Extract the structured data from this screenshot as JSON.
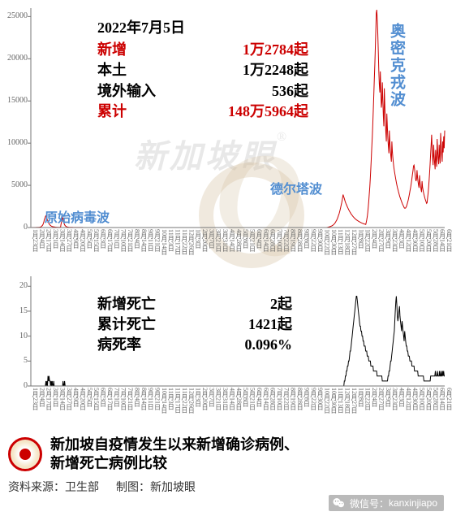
{
  "colors": {
    "red": "#cc0000",
    "black": "#000000",
    "blue": "#528ed1",
    "axis": "#757575",
    "background": "#ffffff",
    "watermark_gray": "#b0b0b0",
    "watermark_beige": "#d4c0a0"
  },
  "top_chart": {
    "type": "line",
    "ylim": [
      0,
      26000
    ],
    "yticks": [
      0,
      5000,
      10000,
      15000,
      20000,
      25000
    ],
    "ytick_labels": [
      "0",
      "5000",
      "10000",
      "15000",
      "20000",
      "25000"
    ],
    "line_color": "#cc0000",
    "line_width": 1,
    "n_points": 890,
    "series_description": "daily new cases",
    "series": [
      0,
      0,
      0,
      5,
      3,
      8,
      4,
      6,
      2,
      5,
      10,
      8,
      15,
      12,
      18,
      20,
      25,
      30,
      45,
      60,
      80,
      120,
      180,
      250,
      350,
      500,
      700,
      950,
      1100,
      1300,
      1400,
      1250,
      1100,
      900,
      750,
      600,
      480,
      380,
      300,
      250,
      200,
      160,
      130,
      110,
      95,
      85,
      75,
      65,
      55,
      48,
      42,
      38,
      35,
      32,
      30,
      28,
      26,
      25,
      24,
      23,
      400,
      600,
      900,
      1200,
      1000,
      750,
      500,
      350,
      250,
      180,
      130,
      95,
      70,
      55,
      45,
      38,
      32,
      28,
      25,
      22,
      20,
      18,
      16,
      15,
      14,
      13,
      12,
      11,
      10,
      10,
      9,
      9,
      8,
      8,
      7,
      7,
      7,
      6,
      6,
      6,
      5,
      5,
      5,
      5,
      4,
      4,
      4,
      4,
      4,
      3,
      3,
      3,
      3,
      3,
      3,
      2,
      2,
      2,
      2,
      2,
      2,
      2,
      2,
      2,
      1,
      1,
      1,
      1,
      1,
      1,
      1,
      1,
      1,
      1,
      1,
      1,
      0,
      0,
      0,
      0,
      0,
      0,
      0,
      0,
      0,
      0,
      0,
      0,
      0,
      0,
      0,
      0,
      0,
      0,
      0,
      0,
      0,
      0,
      0,
      0,
      0,
      0,
      0,
      0,
      0,
      0,
      0,
      0,
      0,
      0,
      0,
      0,
      0,
      0,
      0,
      0,
      0,
      0,
      0,
      0,
      0,
      0,
      0,
      0,
      0,
      0,
      0,
      0,
      0,
      0,
      0,
      0,
      0,
      0,
      0,
      0,
      0,
      0,
      0,
      0,
      0,
      0,
      0,
      0,
      0,
      0,
      0,
      0,
      0,
      0,
      0,
      0,
      0,
      0,
      0,
      0,
      0,
      0,
      0,
      0,
      0,
      0,
      0,
      0,
      0,
      0,
      0,
      0,
      0,
      0,
      0,
      0,
      0,
      0,
      0,
      0,
      0,
      0,
      0,
      0,
      0,
      0,
      0,
      0,
      0,
      0,
      0,
      0,
      0,
      0,
      0,
      0,
      0,
      0,
      0,
      0,
      0,
      0,
      0,
      0,
      0,
      0,
      0,
      0,
      0,
      0,
      0,
      0,
      0,
      0,
      0,
      0,
      0,
      0,
      0,
      0,
      0,
      0,
      0,
      0,
      0,
      0,
      0,
      0,
      0,
      0,
      0,
      0,
      0,
      0,
      0,
      0,
      0,
      0,
      0,
      0,
      0,
      0,
      0,
      0,
      0,
      0,
      0,
      0,
      0,
      0,
      0,
      0,
      0,
      0,
      0,
      0,
      0,
      0,
      0,
      0,
      0,
      0,
      0,
      0,
      0,
      0,
      0,
      0,
      0,
      0,
      0,
      0,
      0,
      0,
      0,
      0,
      0,
      0,
      0,
      0,
      0,
      0,
      0,
      0,
      0,
      0,
      0,
      0,
      0,
      0,
      0,
      0,
      0,
      0,
      0,
      0,
      0,
      0,
      0,
      0,
      0,
      0,
      0,
      0,
      0,
      0,
      0,
      0,
      0,
      0,
      0,
      0,
      0,
      0,
      0,
      0,
      0,
      0,
      0,
      0,
      0,
      0,
      0,
      0,
      0,
      0,
      0,
      0,
      0,
      0,
      0,
      0,
      0,
      0,
      0,
      0,
      0,
      0,
      0,
      0,
      0,
      0,
      0,
      0,
      0,
      0,
      0,
      0,
      0,
      0,
      0,
      0,
      0,
      0,
      0,
      0,
      0,
      0,
      0,
      0,
      0,
      0,
      0,
      0,
      0,
      0,
      0,
      0,
      0,
      0,
      0,
      0,
      0,
      0,
      0,
      0,
      0,
      0,
      0,
      0,
      0,
      0,
      0,
      0,
      0,
      0,
      0,
      0,
      0,
      0,
      0,
      0,
      0,
      0,
      0,
      0,
      0,
      0,
      0,
      0,
      0,
      0,
      0,
      0,
      0,
      0,
      0,
      0,
      0,
      0,
      0,
      0,
      0,
      0,
      0,
      0,
      0,
      0,
      0,
      0,
      0,
      0,
      0,
      0,
      0,
      0,
      0,
      0,
      0,
      0,
      0,
      0,
      0,
      0,
      0,
      0,
      0,
      0,
      0,
      0,
      0,
      0,
      0,
      0,
      0,
      0,
      0,
      0,
      0,
      0,
      0,
      0,
      0,
      0,
      0,
      0,
      0,
      0,
      0,
      0,
      0,
      0,
      0,
      0,
      0,
      0,
      0,
      0,
      0,
      0,
      0,
      0,
      0,
      0,
      0,
      0,
      0,
      0,
      0,
      0,
      0,
      0,
      0,
      0,
      0,
      0,
      0,
      0,
      0,
      0,
      0,
      0,
      0,
      0,
      0,
      0,
      0,
      0,
      0,
      0,
      0,
      0,
      0,
      0,
      0,
      0,
      0,
      0,
      0,
      0,
      0,
      0,
      0,
      0,
      0,
      0,
      0,
      0,
      0,
      0,
      0,
      0,
      0,
      0,
      0,
      0,
      0,
      0,
      0,
      0,
      0,
      0,
      0,
      20,
      30,
      40,
      55,
      70,
      90,
      110,
      130,
      150,
      180,
      210,
      250,
      290,
      340,
      400,
      470,
      550,
      640,
      740,
      850,
      980,
      1120,
      1280,
      1450,
      1640,
      1850,
      2080,
      2330,
      2600,
      2900,
      3200,
      3550,
      3900,
      3700,
      3500,
      3300,
      3100,
      2950,
      2800,
      2650,
      2500,
      2380,
      2250,
      2130,
      2000,
      1900,
      1800,
      1700,
      1600,
      1520,
      1440,
      1360,
      1290,
      1220,
      1160,
      1100,
      1040,
      990,
      940,
      890,
      850,
      810,
      770,
      730,
      695,
      660,
      630,
      600,
      570,
      540,
      515,
      490,
      465,
      445,
      425,
      405,
      385,
      370,
      600,
      900,
      1300,
      1800,
      2400,
      3100,
      3900,
      4800,
      5800,
      6900,
      8100,
      9400,
      10800,
      12300,
      13900,
      15600,
      17400,
      19300,
      21300,
      23300,
      25400,
      25800,
      24500,
      22800,
      20800,
      18600,
      17000,
      16000,
      18500,
      16200,
      14200,
      14800,
      17200,
      15000,
      13200,
      12000,
      16500,
      14200,
      12500,
      11200,
      10200,
      13500,
      11800,
      10500,
      9600,
      8800,
      11500,
      10000,
      9100,
      8400,
      7800,
      10200,
      8900,
      8200,
      7600,
      7100,
      6700,
      6300,
      5950,
      5620,
      5310,
      5020,
      4750,
      4500,
      4260,
      4040,
      3830,
      3630,
      3450,
      3275,
      3110,
      2955,
      2810,
      2670,
      2540,
      2415,
      2300,
      2300,
      2300,
      2400,
      2500,
      2700,
      2900,
      3150,
      3400,
      3700,
      4000,
      4330,
      4680,
      5050,
      5450,
      5870,
      6320,
      6800,
      7300,
      7400,
      7000,
      6400,
      5800,
      5500,
      5800,
      6800,
      6000,
      5400,
      5000,
      4700,
      6200,
      5400,
      4900,
      4500,
      4200,
      5500,
      4800,
      4400,
      4100,
      3850,
      3620,
      3410,
      3210,
      3030,
      2860,
      2940,
      3500,
      4100,
      4800,
      5600,
      6500,
      7500,
      8600,
      9800,
      11000,
      9500,
      8300,
      7400,
      9800,
      8500,
      7600,
      6900,
      9200,
      8000,
      7200,
      10500,
      9100,
      8200,
      7500,
      9800,
      8500,
      7600,
      11200,
      9700,
      8600,
      7800,
      10200,
      8900,
      10800,
      9400,
      11500
    ],
    "wave_labels": {
      "original": "原始病毒波",
      "delta": "德尔塔波",
      "omicron": "奥密克戎波"
    }
  },
  "bottom_chart": {
    "type": "line",
    "ylim": [
      0,
      22
    ],
    "yticks": [
      0,
      5,
      10,
      15,
      20
    ],
    "ytick_labels": [
      "0",
      "5",
      "10",
      "15",
      "20"
    ],
    "line_color": "#000000",
    "line_width": 1,
    "series": [
      0,
      0,
      0,
      0,
      0,
      0,
      0,
      0,
      0,
      0,
      0,
      0,
      0,
      0,
      0,
      0,
      0,
      0,
      0,
      0,
      0,
      0,
      0,
      0,
      0,
      0,
      0,
      0,
      0,
      1,
      0,
      1,
      0,
      2,
      1,
      2,
      1,
      1,
      0,
      1,
      0,
      1,
      0,
      0,
      1,
      0,
      0,
      0,
      0,
      0,
      0,
      0,
      0,
      0,
      0,
      0,
      0,
      0,
      0,
      0,
      0,
      0,
      1,
      0,
      0,
      1,
      0,
      0,
      0,
      0,
      0,
      0,
      0,
      0,
      0,
      0,
      0,
      0,
      0,
      0,
      0,
      0,
      0,
      0,
      0,
      0,
      0,
      0,
      0,
      0,
      0,
      0,
      0,
      0,
      0,
      0,
      0,
      0,
      0,
      0,
      0,
      0,
      0,
      0,
      0,
      0,
      0,
      0,
      0,
      0,
      0,
      0,
      0,
      0,
      0,
      0,
      0,
      0,
      0,
      0,
      0,
      0,
      0,
      0,
      0,
      0,
      0,
      0,
      0,
      0,
      0,
      0,
      0,
      0,
      0,
      0,
      0,
      0,
      0,
      0,
      0,
      0,
      0,
      0,
      0,
      0,
      0,
      0,
      0,
      0,
      0,
      0,
      0,
      0,
      0,
      0,
      0,
      0,
      0,
      0,
      0,
      0,
      0,
      0,
      0,
      0,
      0,
      0,
      0,
      0,
      0,
      0,
      0,
      0,
      0,
      0,
      0,
      0,
      0,
      0,
      0,
      0,
      0,
      0,
      0,
      0,
      0,
      0,
      0,
      0,
      0,
      0,
      0,
      0,
      0,
      0,
      0,
      0,
      0,
      0,
      0,
      0,
      0,
      0,
      0,
      0,
      0,
      0,
      0,
      0,
      0,
      0,
      0,
      0,
      0,
      0,
      0,
      0,
      0,
      0,
      0,
      0,
      0,
      0,
      0,
      0,
      0,
      0,
      0,
      0,
      0,
      0,
      0,
      0,
      0,
      0,
      0,
      0,
      0,
      0,
      0,
      0,
      0,
      0,
      0,
      0,
      0,
      0,
      0,
      0,
      0,
      0,
      0,
      0,
      0,
      0,
      0,
      0,
      0,
      0,
      0,
      0,
      0,
      0,
      0,
      0,
      0,
      0,
      0,
      0,
      0,
      0,
      0,
      0,
      0,
      0,
      0,
      0,
      0,
      0,
      0,
      0,
      0,
      0,
      0,
      0,
      0,
      0,
      0,
      0,
      0,
      0,
      0,
      0,
      0,
      0,
      0,
      0,
      0,
      0,
      0,
      0,
      0,
      0,
      0,
      0,
      0,
      0,
      0,
      0,
      0,
      0,
      0,
      0,
      0,
      0,
      0,
      0,
      0,
      0,
      0,
      0,
      0,
      0,
      0,
      0,
      0,
      0,
      0,
      0,
      0,
      0,
      0,
      0,
      0,
      0,
      0,
      0,
      0,
      0,
      0,
      0,
      0,
      0,
      0,
      0,
      0,
      0,
      0,
      0,
      0,
      0,
      0,
      0,
      0,
      0,
      0,
      0,
      0,
      0,
      0,
      0,
      0,
      0,
      0,
      0,
      0,
      0,
      0,
      0,
      0,
      0,
      0,
      0,
      0,
      0,
      0,
      0,
      0,
      0,
      0,
      0,
      0,
      0,
      0,
      0,
      0,
      0,
      0,
      0,
      0,
      0,
      0,
      0,
      0,
      0,
      0,
      0,
      0,
      0,
      0,
      0,
      0,
      0,
      0,
      0,
      0,
      0,
      0,
      0,
      0,
      0,
      0,
      0,
      0,
      0,
      0,
      0,
      0,
      0,
      0,
      0,
      0,
      0,
      0,
      0,
      0,
      0,
      0,
      0,
      0,
      0,
      0,
      0,
      0,
      0,
      0,
      0,
      0,
      0,
      0,
      0,
      0,
      0,
      0,
      0,
      0,
      0,
      0,
      0,
      0,
      0,
      0,
      0,
      0,
      0,
      0,
      0,
      0,
      0,
      0,
      0,
      0,
      0,
      0,
      0,
      0,
      0,
      0,
      0,
      0,
      0,
      0,
      0,
      0,
      0,
      0,
      0,
      0,
      0,
      0,
      0,
      0,
      0,
      0,
      0,
      0,
      0,
      0,
      0,
      0,
      0,
      0,
      0,
      0,
      0,
      0,
      0,
      0,
      0,
      0,
      0,
      0,
      0,
      0,
      0,
      0,
      0,
      0,
      0,
      0,
      0,
      0,
      0,
      0,
      0,
      0,
      0,
      0,
      0,
      0,
      0,
      0,
      0,
      0,
      0,
      0,
      0,
      0,
      0,
      0,
      0,
      0,
      0,
      0,
      0,
      0,
      0,
      0,
      0,
      0,
      0,
      0,
      0,
      0,
      0,
      0,
      0,
      0,
      0,
      0,
      0,
      0,
      0,
      0,
      0,
      0,
      0,
      0,
      0,
      0,
      0,
      0,
      0,
      0,
      0,
      0,
      0,
      0,
      0,
      0,
      0,
      0,
      0,
      0,
      0,
      0,
      0,
      0,
      0,
      0,
      0,
      0,
      0,
      0,
      0,
      0,
      0,
      0,
      0,
      0,
      0,
      0,
      0,
      0,
      0,
      0,
      0,
      0,
      0,
      0,
      0,
      0,
      1,
      1,
      2,
      2,
      3,
      3,
      4,
      4,
      5,
      5,
      6,
      7,
      7,
      8,
      9,
      10,
      11,
      12,
      13,
      14,
      15,
      16,
      17,
      18,
      18,
      17,
      16,
      15,
      14,
      13,
      12,
      12,
      11,
      11,
      10,
      10,
      9,
      9,
      8,
      8,
      8,
      7,
      7,
      7,
      6,
      6,
      6,
      5,
      5,
      5,
      5,
      4,
      4,
      4,
      4,
      4,
      3,
      3,
      3,
      3,
      3,
      3,
      3,
      2,
      2,
      2,
      2,
      2,
      2,
      2,
      2,
      2,
      2,
      1,
      1,
      1,
      1,
      1,
      1,
      1,
      1,
      1,
      1,
      1,
      2,
      2,
      3,
      3,
      4,
      5,
      5,
      6,
      7,
      8,
      9,
      10,
      11,
      13,
      15,
      17,
      18,
      16,
      14,
      13,
      14,
      15,
      16,
      14,
      13,
      12,
      11,
      13,
      12,
      11,
      10,
      9,
      11,
      10,
      9,
      8,
      8,
      7,
      7,
      6,
      6,
      6,
      5,
      5,
      5,
      5,
      4,
      4,
      4,
      4,
      4,
      3,
      3,
      3,
      3,
      3,
      3,
      3,
      2,
      2,
      2,
      2,
      2,
      2,
      2,
      2,
      2,
      2,
      2,
      1,
      1,
      1,
      1,
      1,
      1,
      1,
      1,
      1,
      1,
      1,
      1,
      1,
      2,
      2,
      2,
      2,
      2,
      2,
      2,
      2,
      2,
      3,
      2,
      2,
      2,
      3,
      2,
      2,
      2,
      3,
      2,
      2,
      3,
      2,
      2,
      3,
      2,
      3,
      2,
      2
    ]
  },
  "xaxis": {
    "ticks": [
      "1月23日",
      "2月4日",
      "2月17日",
      "3月1日",
      "3月14日",
      "3月27日",
      "4月9日",
      "4月20日",
      "5月5日",
      "5月15日",
      "6月3日",
      "6月17日",
      "7月1日",
      "7月10日",
      "7月21日",
      "8月4日",
      "8月14日",
      "9月11日",
      "9月21日",
      "10月14日",
      "11月3日",
      "11月17日",
      "11月22日",
      "12月26日",
      "1月3日",
      "2月20日",
      "3月7日",
      "3月21日",
      "3月31日",
      "4月14日",
      "4月28日",
      "5月8日",
      "5月21日",
      "6月4日",
      "6月14日",
      "6月28日",
      "7月10日",
      "7月22日",
      "8月19日",
      "8月28日",
      "9月8日",
      "9月22日",
      "9月30日",
      "10月22日",
      "10月30日",
      "11月13日",
      "12月18日",
      "12月27日",
      "1月8日",
      "1月22日",
      "2月4日",
      "2月27日",
      "3月9日",
      "3月23日",
      "4月3日",
      "4月12日",
      "4月30日",
      "5月10日",
      "5月20日",
      "5月28日",
      "6月14日",
      "6月21日"
    ]
  },
  "stats_top": {
    "date": "2022年7月5日",
    "rows": [
      {
        "label": "新增",
        "value": "1万2784起",
        "color": "#cc0000"
      },
      {
        "label": "本土",
        "value": "1万2248起",
        "color": "#000000"
      },
      {
        "label": "境外输入",
        "value": "536起",
        "color": "#000000"
      },
      {
        "label": "累计",
        "value": "148万5964起",
        "color": "#cc0000"
      }
    ]
  },
  "stats_bottom": {
    "rows": [
      {
        "label": "新增死亡",
        "value": "2起"
      },
      {
        "label": "累计死亡",
        "value": "1421起"
      },
      {
        "label": "病死率",
        "value": "0.096%"
      }
    ]
  },
  "watermark": {
    "text": "新加坡眼",
    "reg": "®"
  },
  "footer": {
    "title_line1": "新加坡自疫情发生以来新增确诊病例、",
    "title_line2": "新增死亡病例比较",
    "source_label": "资料来源：",
    "source_value": "卫生部",
    "producer_label": "制图：",
    "producer_value": "新加坡眼"
  },
  "wechat": {
    "label": "微信号：",
    "id": "kanxinjiapo"
  }
}
